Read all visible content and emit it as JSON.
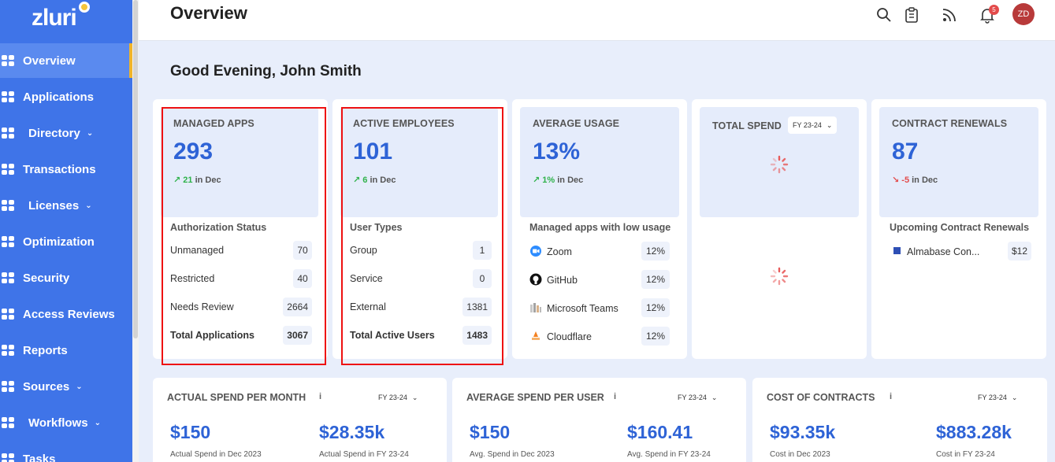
{
  "brand": {
    "logo_text": "zluri"
  },
  "sidebar": {
    "items": [
      {
        "label": "Overview",
        "icon": "grid-icon",
        "active": true,
        "has_chevron": false
      },
      {
        "label": "Applications",
        "icon": "windows-icon",
        "active": false,
        "has_chevron": false
      },
      {
        "label": "Directory",
        "icon": "id-card-icon",
        "active": false,
        "has_chevron": true
      },
      {
        "label": "Transactions",
        "icon": "wallet-icon",
        "active": false,
        "has_chevron": false
      },
      {
        "label": "Licenses",
        "icon": "license-icon",
        "active": false,
        "has_chevron": true
      },
      {
        "label": "Optimization",
        "icon": "rocket-icon",
        "active": false,
        "has_chevron": false
      },
      {
        "label": "Security",
        "icon": "shield-icon",
        "active": false,
        "has_chevron": false
      },
      {
        "label": "Access Reviews",
        "icon": "user-check-icon",
        "active": false,
        "has_chevron": false
      },
      {
        "label": "Reports",
        "icon": "report-icon",
        "active": false,
        "has_chevron": false
      },
      {
        "label": "Sources",
        "icon": "globe-icon",
        "active": false,
        "has_chevron": true
      },
      {
        "label": "Workflows",
        "icon": "workflow-icon",
        "active": false,
        "has_chevron": true
      },
      {
        "label": "Tasks",
        "icon": "tasks-icon",
        "active": false,
        "has_chevron": false
      }
    ]
  },
  "header": {
    "title": "Overview",
    "notification_count": "5",
    "avatar_initials": "ZD"
  },
  "greeting": "Good Evening, John Smith",
  "managed_apps": {
    "label": "MANAGED APPS",
    "value": "293",
    "delta_value": "21",
    "delta_period": "in Dec",
    "section_title": "Authorization Status",
    "rows": [
      {
        "label": "Unmanaged",
        "value": "70"
      },
      {
        "label": "Restricted",
        "value": "40"
      },
      {
        "label": "Needs Review",
        "value": "2664"
      },
      {
        "label": "Total Applications",
        "value": "3067"
      }
    ]
  },
  "active_employees": {
    "label": "ACTIVE EMPLOYEES",
    "value": "101",
    "delta_value": "6",
    "delta_period": "in Dec",
    "section_title": "User Types",
    "rows": [
      {
        "label": "Group",
        "value": "1"
      },
      {
        "label": "Service",
        "value": "0"
      },
      {
        "label": "External",
        "value": "1381"
      },
      {
        "label": "Total Active Users",
        "value": "1483"
      }
    ]
  },
  "average_usage": {
    "label": "AVERAGE USAGE",
    "value": "13%",
    "delta_value": "1%",
    "delta_period": "in Dec",
    "section_title": "Managed apps with low usage",
    "apps": [
      {
        "name": "Zoom",
        "value": "12%",
        "color": "#2d8cff"
      },
      {
        "name": "GitHub",
        "value": "12%",
        "color": "#111111"
      },
      {
        "name": "Microsoft Teams",
        "value": "12%",
        "color": "#5b5fc7"
      },
      {
        "name": "Cloudflare",
        "value": "12%",
        "color": "#f48120"
      }
    ]
  },
  "total_spend": {
    "label": "TOTAL SPEND",
    "period": "FY 23-24"
  },
  "contract_renewals": {
    "label": "CONTRACT RENEWALS",
    "value": "87",
    "delta_value": "-5",
    "delta_period": "in Dec",
    "section_title": "Upcoming Contract Renewals",
    "items": [
      {
        "name": "Almabase Con...",
        "value": "$12"
      }
    ]
  },
  "actual_spend": {
    "title": "ACTUAL SPEND PER MONTH",
    "info": "i",
    "period": "FY 23-24",
    "value_1": "$150",
    "sub_1": "Actual Spend in Dec 2023",
    "value_2": "$28.35k",
    "sub_2": "Actual Spend in FY 23-24"
  },
  "avg_spend_user": {
    "title": "AVERAGE SPEND PER USER",
    "info": "i",
    "period": "FY 23-24",
    "value_1": "$150",
    "sub_1": "Avg. Spend in Dec 2023",
    "value_2": "$160.41",
    "sub_2": "Avg. Spend in FY 23-24"
  },
  "cost_contracts": {
    "title": "COST OF CONTRACTS",
    "info": "i",
    "period": "FY 23-24",
    "value_1": "$93.35k",
    "sub_1": "Cost in Dec 2023",
    "value_2": "$883.28k",
    "sub_2": "Cost in FY 23-24"
  },
  "colors": {
    "accent": "#2e63d6",
    "sidebar": "#3f74e8",
    "up": "#2fb24a",
    "down": "#e34b4b"
  }
}
